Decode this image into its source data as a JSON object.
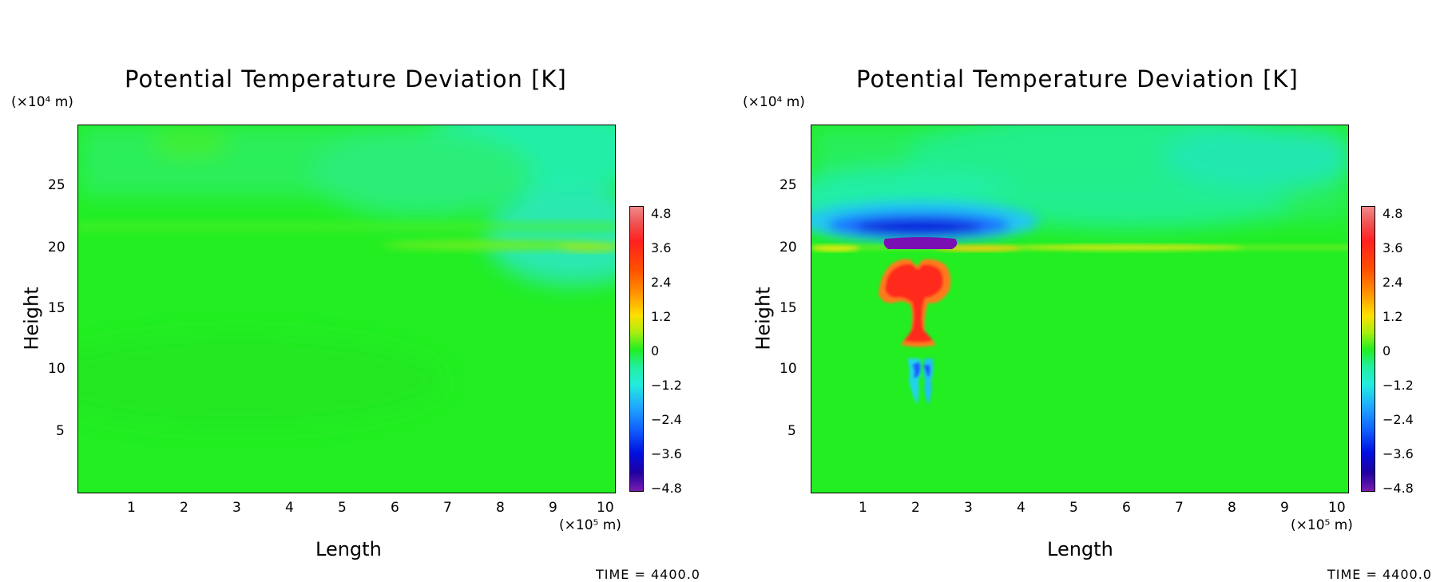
{
  "chart_data": [
    {
      "type": "heatmap",
      "title": "Potential Temperature Deviation [K]",
      "xlabel": "Length",
      "ylabel": "Height",
      "x_unit": "(×10⁵ m)",
      "y_unit": "(×10⁴ m)",
      "xlim": [
        0,
        10.2
      ],
      "ylim": [
        0,
        30
      ],
      "x_ticks": [
        "1",
        "2",
        "3",
        "4",
        "5",
        "6",
        "7",
        "8",
        "9",
        "10"
      ],
      "y_ticks": [
        "5",
        "10",
        "15",
        "20",
        "25"
      ],
      "time_label": "TIME = 4400.0",
      "colorbar": {
        "ticks": [
          "4.8",
          "3.6",
          "2.4",
          "1.2",
          "0",
          "−1.2",
          "−2.4",
          "−3.6",
          "−4.8"
        ],
        "range": [
          -4.8,
          4.8
        ]
      },
      "features": [
        {
          "name": "background",
          "x": [
            0,
            10.2
          ],
          "y": [
            0,
            30
          ],
          "value": 0
        },
        {
          "name": "warm layer",
          "x": [
            0,
            10.2
          ],
          "y": [
            19.6,
            20.6
          ],
          "value": 0.5
        },
        {
          "name": "cool upper region",
          "x": [
            5,
            10.2
          ],
          "y": [
            21,
            30
          ],
          "value": -1.5
        }
      ]
    },
    {
      "type": "heatmap",
      "title": "Potential Temperature Deviation [K]",
      "xlabel": "Length",
      "ylabel": "Height",
      "x_unit": "(×10⁵ m)",
      "y_unit": "(×10⁴ m)",
      "xlim": [
        0,
        10.2
      ],
      "ylim": [
        0,
        30
      ],
      "x_ticks": [
        "1",
        "2",
        "3",
        "4",
        "5",
        "6",
        "7",
        "8",
        "9",
        "10"
      ],
      "y_ticks": [
        "5",
        "10",
        "15",
        "20",
        "25"
      ],
      "time_label": "TIME = 4400.0",
      "colorbar": {
        "ticks": [
          "4.8",
          "3.6",
          "2.4",
          "1.2",
          "0",
          "−1.2",
          "−2.4",
          "−3.6",
          "−4.8"
        ],
        "range": [
          -4.8,
          4.8
        ]
      },
      "features": [
        {
          "name": "background",
          "x": [
            0,
            10.2
          ],
          "y": [
            0,
            30
          ],
          "value": 0
        },
        {
          "name": "warm layer",
          "x": [
            0,
            10.2
          ],
          "y": [
            19.6,
            20.6
          ],
          "value": 0.8
        },
        {
          "name": "cold cap",
          "x": [
            1.4,
            2.7
          ],
          "y": [
            19.9,
            21.2
          ],
          "value": -4.8
        },
        {
          "name": "cold band",
          "x": [
            0,
            4.5
          ],
          "y": [
            20.6,
            22.5
          ],
          "value": -3.0
        },
        {
          "name": "warm plume",
          "x": [
            1.3,
            2.7
          ],
          "y": [
            10.5,
            19.3
          ],
          "value": 4.0
        },
        {
          "name": "cold filaments",
          "x": [
            1.7,
            2.4
          ],
          "y": [
            6.6,
            10.5
          ],
          "value": -2.4
        }
      ]
    }
  ]
}
